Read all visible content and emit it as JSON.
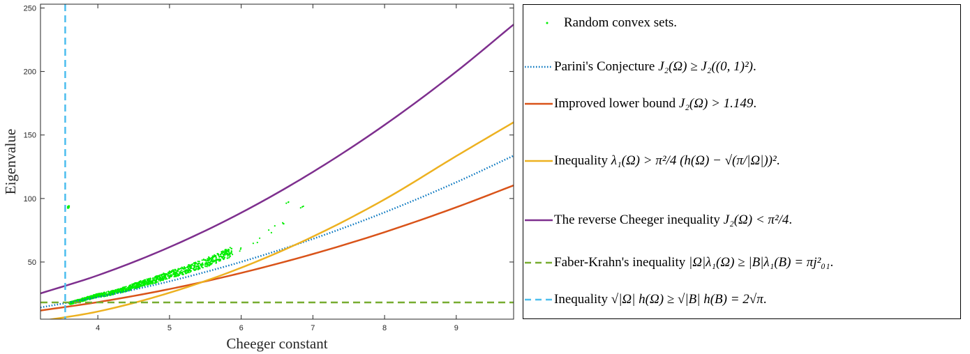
{
  "chart_data": {
    "type": "line",
    "xlabel": "Cheeger constant",
    "ylabel": "Eigenvalue",
    "xlim": [
      3.2,
      9.8
    ],
    "ylim": [
      5,
      253
    ],
    "x_ticks": [
      4,
      5,
      6,
      7,
      8,
      9
    ],
    "y_ticks": [
      50,
      100,
      150,
      200,
      250
    ],
    "grid": false,
    "legend_placement": "outside-right",
    "series": [
      {
        "name": "Random convex sets.",
        "kind": "scatter",
        "color": "#00ee00",
        "approx_points": [
          [
            3.6,
            17
          ],
          [
            3.8,
            20
          ],
          [
            4.0,
            23
          ],
          [
            4.2,
            25
          ],
          [
            4.4,
            28
          ],
          [
            4.6,
            32
          ],
          [
            4.8,
            35
          ],
          [
            5.0,
            39
          ],
          [
            5.2,
            42
          ],
          [
            5.4,
            46
          ],
          [
            5.6,
            50
          ],
          [
            5.8,
            55
          ],
          [
            6.0,
            60
          ],
          [
            6.2,
            66
          ],
          [
            6.4,
            76
          ],
          [
            6.6,
            80
          ],
          [
            6.7,
            95
          ],
          [
            6.8,
            93
          ]
        ]
      },
      {
        "name": "Parini's Conjecture J_2(Ω) ≥ J_2((0,1)^2).",
        "kind": "line",
        "style": "dotted",
        "color": "#0072bd",
        "points": [
          [
            3.2,
            14.2
          ],
          [
            4,
            22.3
          ],
          [
            5,
            34.8
          ],
          [
            6,
            50.1
          ],
          [
            7,
            68.2
          ],
          [
            8,
            89.1
          ],
          [
            9,
            112.8
          ],
          [
            9.8,
            133.7
          ]
        ]
      },
      {
        "name": "Improved lower bound J_2(Ω) > 1.149.",
        "kind": "line",
        "style": "solid",
        "color": "#d95319",
        "points": [
          [
            3.2,
            11.8
          ],
          [
            4,
            18.4
          ],
          [
            5,
            28.7
          ],
          [
            6,
            41.4
          ],
          [
            7,
            56.3
          ],
          [
            8,
            73.5
          ],
          [
            9,
            93.1
          ],
          [
            9.8,
            110.3
          ]
        ]
      },
      {
        "name": "Inequality λ_1(Ω) > π²/4 (h(Ω) − √(π/|Ω|))².",
        "kind": "line",
        "style": "solid",
        "color": "#edb120",
        "points": [
          [
            3.2,
            3.5
          ],
          [
            4,
            11.0
          ],
          [
            5,
            25.8
          ],
          [
            6,
            45.5
          ],
          [
            7,
            70.0
          ],
          [
            8,
            99.3
          ],
          [
            9,
            133.4
          ],
          [
            9.8,
            160
          ]
        ]
      },
      {
        "name": "The reverse Cheeger inequality J_2(Ω) < π²/4.",
        "kind": "line",
        "style": "solid",
        "color": "#7e2f8e",
        "points": [
          [
            3.2,
            25.3
          ],
          [
            4,
            39.5
          ],
          [
            5,
            61.7
          ],
          [
            6,
            88.8
          ],
          [
            7,
            120.9
          ],
          [
            8,
            157.9
          ],
          [
            9,
            199.9
          ],
          [
            9.8,
            237
          ]
        ]
      },
      {
        "name": "Faber-Krahn's inequality |Ω|λ_1(Ω) ≥ |B|λ_1(B) = πj_01².",
        "kind": "hline",
        "style": "dashed",
        "color": "#77ac30",
        "y": 18.17
      },
      {
        "name": "Inequality √|Ω| h(Ω) ≥ √|B| h(B) = 2√π.",
        "kind": "vline",
        "style": "dashed",
        "color": "#4dbeee",
        "x": 3.545
      }
    ]
  },
  "legend": {
    "random": "Random convex sets.",
    "parini": {
      "prefix": "Parini's Conjecture ",
      "formula": "J₂(Ω) ≥ J₂((0, 1)²)",
      "suffix": "."
    },
    "improved": {
      "prefix": "Improved lower bound ",
      "formula": "J₂(Ω) > 1.149",
      "suffix": "."
    },
    "inequality": {
      "prefix": "Inequality ",
      "formula": "λ₁(Ω) > π²/4 (h(Ω) − √(π/|Ω|))²",
      "suffix": "."
    },
    "reverse": {
      "prefix": "The reverse Cheeger inequality ",
      "formula": "J₂(Ω) < π²/4",
      "suffix": "."
    },
    "faber": {
      "prefix": "Faber-Krahn's inequality ",
      "formula": "|Ω|λ₁(Ω) ≥ |B|λ₁(B) = πj²₀₁",
      "suffix": "."
    },
    "cheeger": {
      "prefix": "Inequality ",
      "formula": "√|Ω| h(Ω) ≥ √|B| h(B) = 2√π",
      "suffix": "."
    }
  }
}
